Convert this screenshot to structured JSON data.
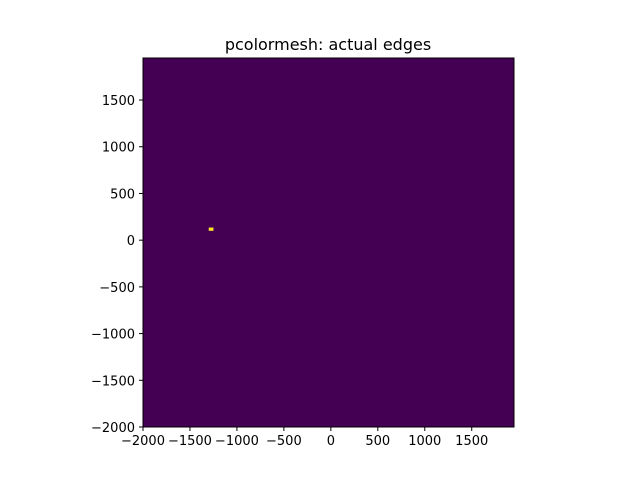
{
  "chart_data": {
    "type": "heatmap",
    "title": "pcolormesh: actual edges",
    "xlabel": "",
    "ylabel": "",
    "xlim": [
      -2000,
      1950
    ],
    "ylim": [
      -2000,
      1950
    ],
    "xticks": [
      -2000,
      -1500,
      -1000,
      -500,
      0,
      500,
      1000,
      1500
    ],
    "yticks": [
      -2000,
      -1500,
      -1000,
      -500,
      0,
      500,
      1000,
      1500
    ],
    "xtick_labels": [
      "−2000",
      "−1500",
      "−1000",
      "−500",
      "0",
      "500",
      "1000",
      "1500"
    ],
    "ytick_labels": [
      "−2000",
      "−1500",
      "−1000",
      "−500",
      "0",
      "500",
      "1000",
      "1500"
    ],
    "grid": false,
    "background_value": 0,
    "background_color": "#440154",
    "cells": [
      {
        "x0": -1300,
        "x1": -1250,
        "y0": 100,
        "y1": 135,
        "value": 1,
        "color": "#fde725"
      }
    ]
  }
}
